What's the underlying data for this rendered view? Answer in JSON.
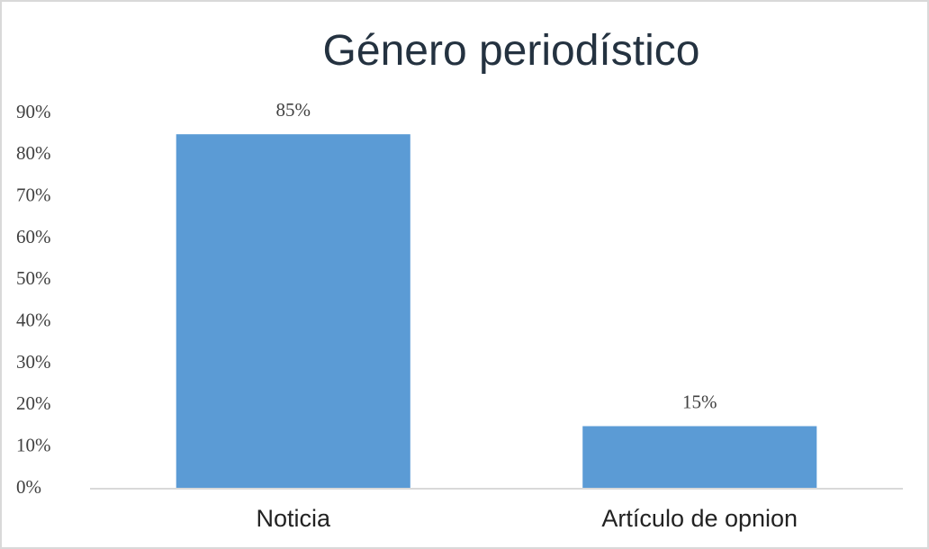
{
  "chart_data": {
    "type": "bar",
    "title": "Género periodístico",
    "categories": [
      "Noticia",
      "Artículo de opnion"
    ],
    "values": [
      85,
      15
    ],
    "value_labels": [
      "85%",
      "15%"
    ],
    "color": "#5b9bd5",
    "ylim": [
      0,
      90
    ],
    "yticks": [
      {
        "value": 0,
        "label": "0%"
      },
      {
        "value": 10,
        "label": "10%"
      },
      {
        "value": 20,
        "label": "20%"
      },
      {
        "value": 30,
        "label": "30%"
      },
      {
        "value": 40,
        "label": "40%"
      },
      {
        "value": 50,
        "label": "50%"
      },
      {
        "value": 60,
        "label": "60%"
      },
      {
        "value": 70,
        "label": "70%"
      },
      {
        "value": 80,
        "label": "80%"
      },
      {
        "value": 90,
        "label": "90%"
      }
    ],
    "grid": false
  }
}
